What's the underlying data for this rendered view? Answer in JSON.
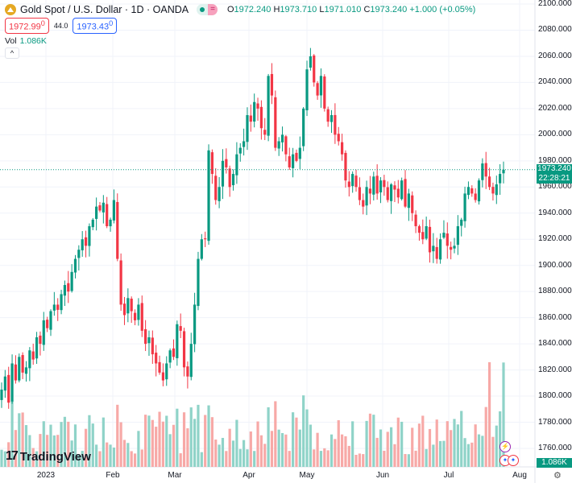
{
  "header": {
    "title": "Gold Spot / U.S. Dollar · 1D · OANDA",
    "market_status_icon": "market-open-dot",
    "o_label": "O",
    "o": "1972.240",
    "h_label": "H",
    "h": "1973.710",
    "l_label": "L",
    "l": "1971.010",
    "c_label": "C",
    "c": "1973.240",
    "change": "+1.000 (+0.05%)"
  },
  "trade": {
    "sell": "1972.99",
    "sell_sup": "0",
    "spread": "44.0",
    "buy": "1973.43",
    "buy_sup": "0"
  },
  "volume": {
    "label": "Vol",
    "value": "1.086K"
  },
  "price_label": {
    "price": "1973.240",
    "countdown": "22:28:21"
  },
  "volume_label": "1.086K",
  "brand": "TradingView",
  "colors": {
    "up": "#089981",
    "down": "#f23645",
    "up_vol": "#8fd3c8",
    "down_vol": "#f7a9a7",
    "grid": "#f0f3fa"
  },
  "chart_data": {
    "type": "candlestick",
    "symbol": "XAUUSD",
    "y_ticks": [
      "2100.000",
      "2080.000",
      "2060.000",
      "2040.000",
      "2020.000",
      "2000.000",
      "1980.000",
      "1960.000",
      "1940.000",
      "1920.000",
      "1900.000",
      "1880.000",
      "1860.000",
      "1840.000",
      "1820.000",
      "1800.000",
      "1780.000",
      "1760.000"
    ],
    "ylim": [
      1760,
      2100
    ],
    "x_ticks": [
      "2023",
      "Feb",
      "Mar",
      "Apr",
      "May",
      "Jun",
      "Jul",
      "Aug"
    ],
    "last_price": 1973.24,
    "closes": [
      1805,
      1815,
      1795,
      1825,
      1812,
      1830,
      1818,
      1822,
      1835,
      1828,
      1845,
      1840,
      1858,
      1852,
      1865,
      1870,
      1866,
      1878,
      1885,
      1880,
      1895,
      1905,
      1912,
      1920,
      1915,
      1930,
      1935,
      1945,
      1942,
      1948,
      1930,
      1935,
      1950,
      1905,
      1870,
      1862,
      1875,
      1865,
      1858,
      1870,
      1850,
      1840,
      1845,
      1832,
      1825,
      1818,
      1812,
      1825,
      1835,
      1830,
      1855,
      1850,
      1822,
      1815,
      1840,
      1870,
      1905,
      1920,
      1920,
      1988,
      1970,
      1950,
      1960,
      1980,
      1975,
      1960,
      1970,
      1985,
      1990,
      1995,
      2015,
      2010,
      2025,
      2020,
      2005,
      2000,
      2045,
      2030,
      1990,
      1995,
      2000,
      1985,
      1975,
      1985,
      1980,
      1990,
      2020,
      2050,
      2060,
      2040,
      2030,
      2045,
      2020,
      2010,
      2015,
      2000,
      1995,
      1985,
      1965,
      1960,
      1970,
      1960,
      1950,
      1945,
      1960,
      1955,
      1968,
      1955,
      1965,
      1960,
      1950,
      1962,
      1958,
      1952,
      1965,
      1945,
      1955,
      1940,
      1930,
      1925,
      1920,
      1930,
      1910,
      1915,
      1905,
      1920,
      1925,
      1915,
      1912,
      1915,
      1930,
      1935,
      1955,
      1960,
      1955,
      1950,
      1965,
      1978,
      1968,
      1960,
      1955,
      1962,
      1970,
      1973.24
    ]
  }
}
